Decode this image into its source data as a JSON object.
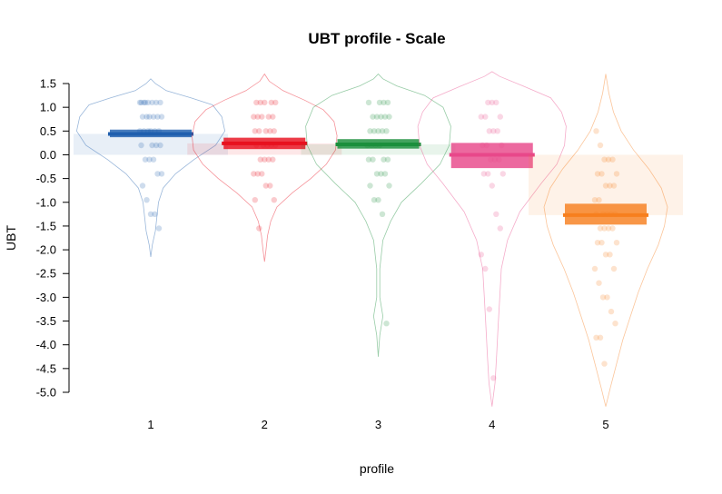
{
  "chart_data": {
    "type": "pirate",
    "title": "UBT profile - Scale",
    "xlabel": "profile",
    "ylabel": "UBT",
    "categories": [
      "1",
      "2",
      "3",
      "4",
      "5"
    ],
    "y_ticks": [
      "1.5",
      "1.0",
      "0.5",
      "0.0",
      "-0.5",
      "-1.0",
      "-1.5",
      "-2.0",
      "-2.5",
      "-3.0",
      "-3.5",
      "-4.0",
      "-4.5",
      "-5.0"
    ],
    "ylim": [
      -5.0,
      1.5
    ],
    "groups": [
      {
        "category": "1",
        "color": "#1f5fae",
        "mean": 0.44,
        "ci": [
          0.37,
          0.53
        ],
        "violin": [
          [
            -2.15,
            0.0
          ],
          [
            -1.9,
            0.01
          ],
          [
            -1.6,
            0.03
          ],
          [
            -1.3,
            0.04
          ],
          [
            -1.0,
            0.05
          ],
          [
            -0.7,
            0.08
          ],
          [
            -0.4,
            0.16
          ],
          [
            -0.1,
            0.28
          ],
          [
            0.2,
            0.42
          ],
          [
            0.5,
            0.48
          ],
          [
            0.8,
            0.46
          ],
          [
            1.05,
            0.4
          ],
          [
            1.2,
            0.26
          ],
          [
            1.35,
            0.1
          ],
          [
            1.5,
            0.03
          ],
          [
            1.6,
            0.0
          ]
        ],
        "points": [
          1.1,
          1.1,
          1.1,
          1.1,
          1.1,
          1.1,
          1.1,
          1.1,
          0.8,
          0.8,
          0.8,
          0.8,
          0.8,
          0.8,
          0.5,
          0.5,
          0.5,
          0.5,
          0.5,
          0.5,
          0.2,
          0.2,
          0.2,
          0.2,
          -0.1,
          -0.1,
          -0.1,
          -0.4,
          -0.4,
          -0.65,
          -0.95,
          -1.25,
          -1.25,
          -1.55
        ]
      },
      {
        "category": "2",
        "color": "#e8101e",
        "mean": 0.24,
        "ci": [
          0.12,
          0.36
        ],
        "violin": [
          [
            -2.25,
            0.0
          ],
          [
            -2.0,
            0.01
          ],
          [
            -1.7,
            0.02
          ],
          [
            -1.4,
            0.04
          ],
          [
            -1.1,
            0.08
          ],
          [
            -0.8,
            0.18
          ],
          [
            -0.5,
            0.3
          ],
          [
            -0.2,
            0.4
          ],
          [
            0.1,
            0.46
          ],
          [
            0.4,
            0.47
          ],
          [
            0.7,
            0.45
          ],
          [
            0.95,
            0.38
          ],
          [
            1.15,
            0.26
          ],
          [
            1.35,
            0.12
          ],
          [
            1.55,
            0.03
          ],
          [
            1.7,
            0.0
          ]
        ],
        "points": [
          1.1,
          1.1,
          1.1,
          1.1,
          1.1,
          0.8,
          0.8,
          0.8,
          0.8,
          0.8,
          0.5,
          0.5,
          0.5,
          0.5,
          0.5,
          0.2,
          0.2,
          0.2,
          0.2,
          0.2,
          -0.1,
          -0.1,
          -0.1,
          -0.1,
          -0.4,
          -0.4,
          -0.4,
          -0.65,
          -0.65,
          -0.95,
          -0.95,
          -1.55
        ]
      },
      {
        "category": "3",
        "color": "#1b8f3c",
        "mean": 0.22,
        "ci": [
          0.13,
          0.33
        ],
        "violin": [
          [
            -4.25,
            0.0
          ],
          [
            -3.8,
            0.01
          ],
          [
            -3.4,
            0.03
          ],
          [
            -3.0,
            0.01
          ],
          [
            -2.4,
            0.01
          ],
          [
            -1.8,
            0.03
          ],
          [
            -1.4,
            0.08
          ],
          [
            -1.0,
            0.15
          ],
          [
            -0.6,
            0.28
          ],
          [
            -0.2,
            0.4
          ],
          [
            0.2,
            0.46
          ],
          [
            0.6,
            0.47
          ],
          [
            1.0,
            0.42
          ],
          [
            1.25,
            0.3
          ],
          [
            1.45,
            0.12
          ],
          [
            1.6,
            0.03
          ],
          [
            1.7,
            0.0
          ]
        ],
        "points": [
          1.1,
          1.1,
          1.1,
          1.1,
          0.8,
          0.8,
          0.8,
          0.8,
          0.8,
          0.5,
          0.5,
          0.5,
          0.5,
          0.5,
          0.2,
          0.2,
          0.2,
          0.2,
          -0.1,
          -0.1,
          -0.1,
          -0.1,
          -0.4,
          -0.4,
          -0.4,
          -0.65,
          -0.65,
          -0.95,
          -0.95,
          -1.25,
          -3.55
        ]
      },
      {
        "category": "4",
        "color": "#e8488a",
        "mean": 0.0,
        "ci": [
          -0.28,
          0.25
        ],
        "violin": [
          [
            -5.3,
            0.0
          ],
          [
            -4.8,
            0.02
          ],
          [
            -4.2,
            0.03
          ],
          [
            -3.6,
            0.04
          ],
          [
            -3.0,
            0.05
          ],
          [
            -2.4,
            0.06
          ],
          [
            -1.8,
            0.1
          ],
          [
            -1.2,
            0.18
          ],
          [
            -0.6,
            0.32
          ],
          [
            -0.2,
            0.42
          ],
          [
            0.2,
            0.47
          ],
          [
            0.6,
            0.48
          ],
          [
            0.9,
            0.45
          ],
          [
            1.2,
            0.38
          ],
          [
            1.45,
            0.2
          ],
          [
            1.65,
            0.05
          ],
          [
            1.75,
            0.0
          ]
        ],
        "points": [
          1.1,
          1.1,
          1.1,
          0.8,
          0.8,
          0.8,
          0.5,
          0.5,
          0.5,
          0.2,
          0.2,
          0.2,
          -0.1,
          -0.1,
          -0.1,
          -0.4,
          -0.4,
          -0.4,
          -0.65,
          -1.25,
          -1.55,
          -2.1,
          -2.4,
          -3.25,
          -4.7
        ]
      },
      {
        "category": "5",
        "color": "#f77f1e",
        "mean": -1.27,
        "ci": [
          -1.47,
          -1.03
        ],
        "violin": [
          [
            -5.3,
            0.0
          ],
          [
            -4.9,
            0.03
          ],
          [
            -4.4,
            0.07
          ],
          [
            -3.9,
            0.11
          ],
          [
            -3.4,
            0.16
          ],
          [
            -2.9,
            0.21
          ],
          [
            -2.4,
            0.27
          ],
          [
            -1.9,
            0.34
          ],
          [
            -1.5,
            0.38
          ],
          [
            -1.1,
            0.4
          ],
          [
            -0.7,
            0.36
          ],
          [
            -0.3,
            0.28
          ],
          [
            0.1,
            0.18
          ],
          [
            0.5,
            0.1
          ],
          [
            0.9,
            0.05
          ],
          [
            1.3,
            0.02
          ],
          [
            1.7,
            0.0
          ]
        ],
        "points": [
          0.5,
          0.2,
          -0.1,
          -0.1,
          -0.1,
          -0.4,
          -0.4,
          -0.4,
          -0.65,
          -0.65,
          -0.65,
          -0.95,
          -0.95,
          -1.25,
          -1.25,
          -1.25,
          -1.25,
          -1.25,
          -1.55,
          -1.55,
          -1.55,
          -1.55,
          -1.85,
          -1.85,
          -1.85,
          -2.1,
          -2.1,
          -2.4,
          -2.4,
          -2.7,
          -3.0,
          -3.0,
          -3.3,
          -3.55,
          -3.85,
          -3.85,
          -4.4
        ]
      }
    ]
  }
}
